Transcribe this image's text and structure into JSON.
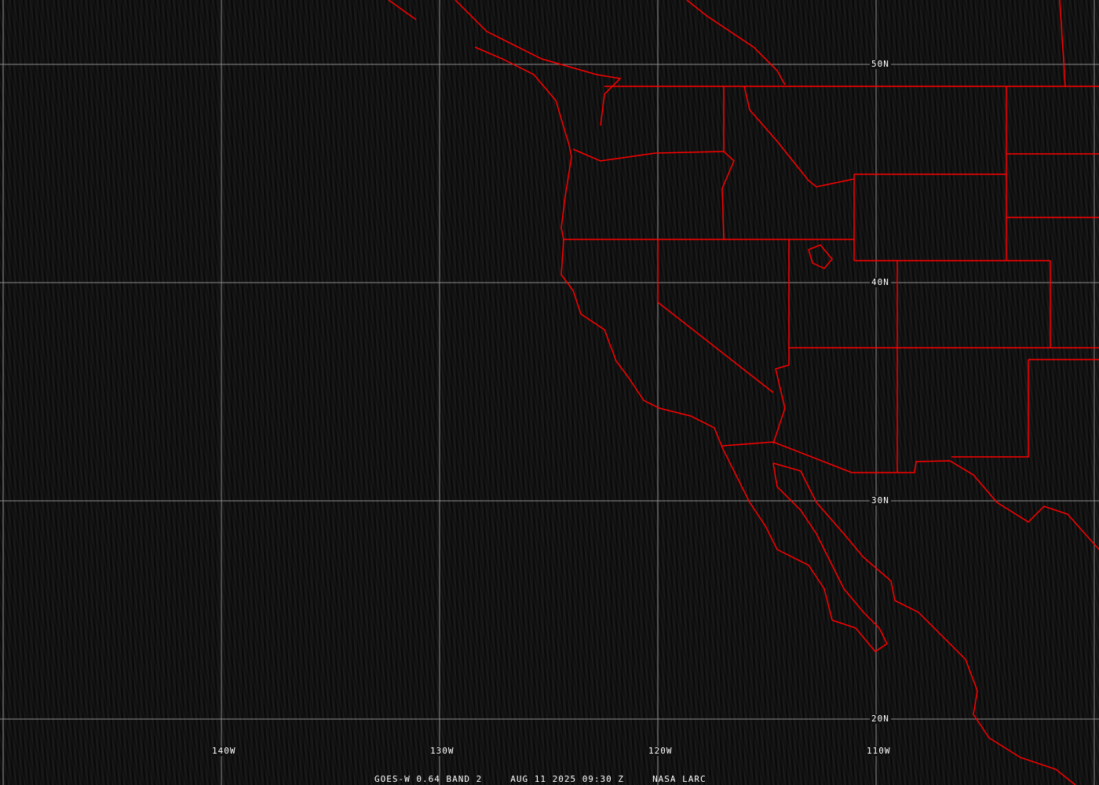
{
  "map": {
    "projection": "equirectangular",
    "background_color": "#0d0d0d",
    "grid_color": "#8c8c8c",
    "boundary_color": "#ff0000",
    "lat_labels": [
      {
        "lat": 50,
        "text": "50N"
      },
      {
        "lat": 40,
        "text": "40N"
      },
      {
        "lat": 30,
        "text": "30N"
      },
      {
        "lat": 20,
        "text": "20N"
      }
    ],
    "lon_labels": [
      {
        "lon": -140,
        "text": "140W"
      },
      {
        "lon": -130,
        "text": "130W"
      },
      {
        "lon": -120,
        "text": "120W"
      },
      {
        "lon": -110,
        "text": "110W"
      }
    ]
  },
  "caption": {
    "satellite": "GOES-W 0.64 BAND 2",
    "datetime": "AUG 11 2025 09:30 Z",
    "source": "NASA LARC"
  }
}
